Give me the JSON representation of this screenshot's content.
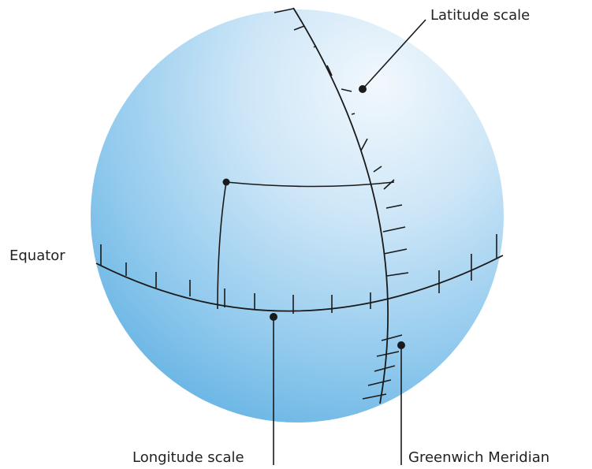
{
  "labels": {
    "latitude_scale": "Latitude scale",
    "equator": "Equator",
    "longitude_scale": "Longitude scale",
    "greenwich_meridian": "Greenwich Meridian"
  },
  "colors": {
    "globe_light": "#eef6fc",
    "globe_mid": "#a8d4f0",
    "globe_dark": "#62b3e3",
    "line": "#1a1a1a",
    "text": "#222222"
  }
}
